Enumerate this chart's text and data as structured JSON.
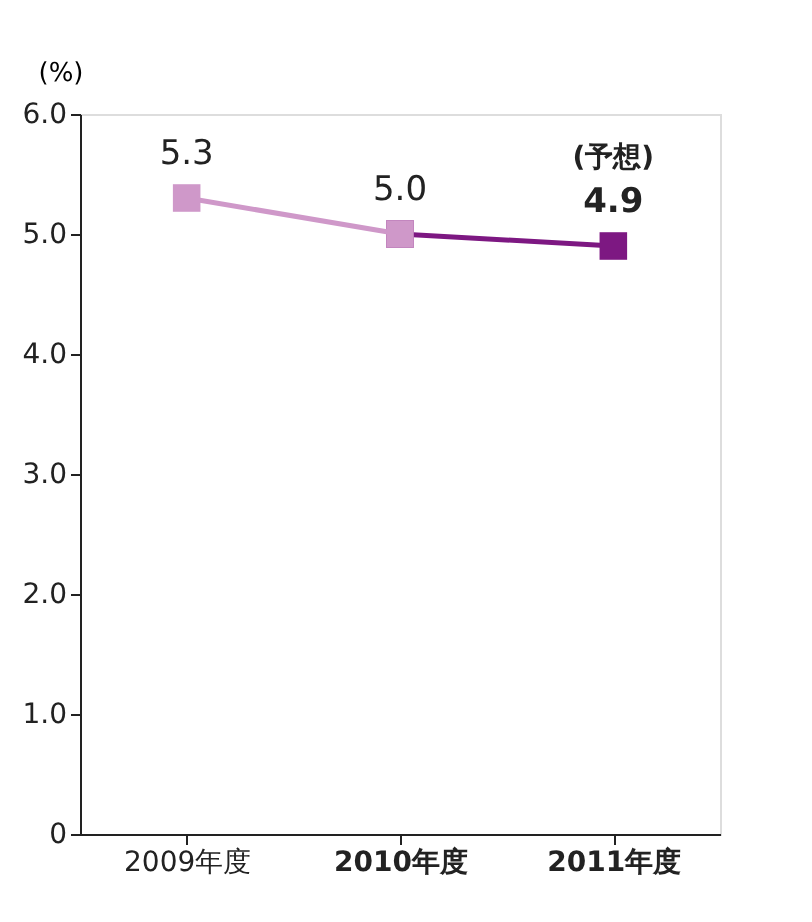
{
  "chart_data": {
    "type": "line",
    "ylabel": "(%)",
    "categories": [
      "2009年度",
      "2010年度",
      "2011年度"
    ],
    "series": [
      {
        "color": "#cf98c9",
        "values": [
          5.3,
          5.0,
          null
        ],
        "value_labels": [
          "5.3",
          "5.0",
          null
        ]
      },
      {
        "color": "#7d1882",
        "values": [
          null,
          5.0,
          4.9
        ],
        "value_labels": [
          null,
          null,
          "4.9"
        ]
      }
    ],
    "ylim": [
      0,
      6
    ],
    "yticks": [
      0,
      {
        "value": 1,
        "label": "1.0"
      },
      {
        "value": 2,
        "label": "2.0"
      },
      {
        "value": 3,
        "label": "3.0"
      },
      {
        "value": 4,
        "label": "4.0"
      },
      {
        "value": 5,
        "label": "5.0"
      },
      {
        "value": 6,
        "label": "6.0"
      }
    ],
    "annotations": [
      {
        "text": "(予想)",
        "x": "2011年度",
        "y": 4.9
      }
    ],
    "marker": "square",
    "line_style": "solid",
    "grid": false
  }
}
